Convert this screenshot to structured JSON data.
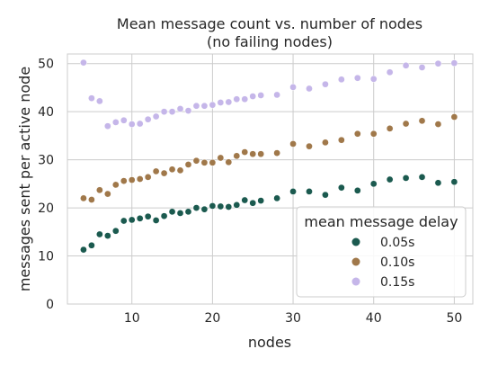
{
  "chart_data": {
    "type": "scatter",
    "title": "Mean message count vs. number of nodes",
    "subtitle": "(no failing nodes)",
    "xlabel": "nodes",
    "ylabel": "messages sent per active node",
    "xlim": [
      2,
      52.3
    ],
    "ylim": [
      0,
      52
    ],
    "xticks": [
      10,
      20,
      30,
      40,
      50
    ],
    "yticks": [
      0,
      10,
      20,
      30,
      40,
      50
    ],
    "grid": true,
    "legend": {
      "title": "mean message delay",
      "position": "lower-right"
    },
    "series": [
      {
        "name": "0.05s",
        "color": "#1b5a4f",
        "points": [
          [
            4,
            11.3
          ],
          [
            5,
            12.2
          ],
          [
            6,
            14.5
          ],
          [
            7,
            14.2
          ],
          [
            8,
            15.2
          ],
          [
            9,
            17.3
          ],
          [
            10,
            17.5
          ],
          [
            11,
            17.8
          ],
          [
            12,
            18.2
          ],
          [
            13,
            17.4
          ],
          [
            14,
            18.3
          ],
          [
            15,
            19.2
          ],
          [
            16,
            18.9
          ],
          [
            17,
            19.2
          ],
          [
            18,
            20.0
          ],
          [
            19,
            19.7
          ],
          [
            20,
            20.4
          ],
          [
            21,
            20.3
          ],
          [
            22,
            20.2
          ],
          [
            23,
            20.6
          ],
          [
            24,
            21.6
          ],
          [
            25,
            21.0
          ],
          [
            26,
            21.5
          ],
          [
            28,
            22.0
          ],
          [
            30,
            23.4
          ],
          [
            32,
            23.4
          ],
          [
            34,
            22.7
          ],
          [
            36,
            24.2
          ],
          [
            38,
            23.6
          ],
          [
            40,
            25.0
          ],
          [
            42,
            25.9
          ],
          [
            44,
            26.2
          ],
          [
            46,
            26.4
          ],
          [
            48,
            25.2
          ],
          [
            50,
            25.4
          ]
        ]
      },
      {
        "name": "0.10s",
        "color": "#a0784a",
        "points": [
          [
            4,
            22.0
          ],
          [
            5,
            21.7
          ],
          [
            6,
            23.7
          ],
          [
            7,
            22.9
          ],
          [
            8,
            24.8
          ],
          [
            9,
            25.6
          ],
          [
            10,
            25.8
          ],
          [
            11,
            26.0
          ],
          [
            12,
            26.4
          ],
          [
            13,
            27.6
          ],
          [
            14,
            27.2
          ],
          [
            15,
            28.0
          ],
          [
            16,
            27.8
          ],
          [
            17,
            29.0
          ],
          [
            18,
            29.8
          ],
          [
            19,
            29.4
          ],
          [
            20,
            29.4
          ],
          [
            21,
            30.4
          ],
          [
            22,
            29.5
          ],
          [
            23,
            30.8
          ],
          [
            24,
            31.6
          ],
          [
            25,
            31.2
          ],
          [
            26,
            31.2
          ],
          [
            28,
            31.4
          ],
          [
            30,
            33.3
          ],
          [
            32,
            32.8
          ],
          [
            34,
            33.6
          ],
          [
            36,
            34.1
          ],
          [
            38,
            35.4
          ],
          [
            40,
            35.4
          ],
          [
            42,
            36.5
          ],
          [
            44,
            37.5
          ],
          [
            46,
            38.1
          ],
          [
            48,
            37.4
          ],
          [
            50,
            38.9
          ]
        ]
      },
      {
        "name": "0.15s",
        "color": "#c5b6e9",
        "points": [
          [
            4,
            50.2
          ],
          [
            5,
            42.8
          ],
          [
            6,
            42.2
          ],
          [
            7,
            37.0
          ],
          [
            8,
            37.8
          ],
          [
            9,
            38.2
          ],
          [
            10,
            37.4
          ],
          [
            11,
            37.5
          ],
          [
            12,
            38.4
          ],
          [
            13,
            39.0
          ],
          [
            14,
            40.0
          ],
          [
            15,
            40.0
          ],
          [
            16,
            40.6
          ],
          [
            17,
            40.2
          ],
          [
            18,
            41.2
          ],
          [
            19,
            41.2
          ],
          [
            20,
            41.4
          ],
          [
            21,
            41.9
          ],
          [
            22,
            42.0
          ],
          [
            23,
            42.6
          ],
          [
            24,
            42.6
          ],
          [
            25,
            43.2
          ],
          [
            26,
            43.4
          ],
          [
            28,
            43.5
          ],
          [
            30,
            45.1
          ],
          [
            32,
            44.8
          ],
          [
            34,
            45.7
          ],
          [
            36,
            46.7
          ],
          [
            38,
            47.0
          ],
          [
            40,
            46.8
          ],
          [
            42,
            48.2
          ],
          [
            44,
            49.6
          ],
          [
            46,
            49.2
          ],
          [
            48,
            50.0
          ],
          [
            50,
            50.1
          ]
        ]
      }
    ]
  }
}
